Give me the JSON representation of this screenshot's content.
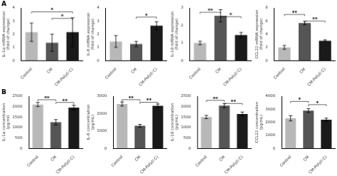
{
  "chart_data": [
    {
      "type": "bar",
      "panel_label": "A",
      "ylabel": "IL-1α mRNA expression\n(fold of change)",
      "categories": [
        "Control",
        "CM",
        "CM-Poly(I:C)"
      ],
      "values": [
        2.15,
        1.35,
        2.15
      ],
      "errors": [
        0.7,
        0.65,
        1.1
      ],
      "colors": [
        "#b8b8b8",
        "#555555",
        "#1a1a1a"
      ],
      "ylim": [
        0,
        4
      ],
      "yticks": [
        0,
        1,
        2,
        3,
        4
      ],
      "grid": false,
      "sig_lines": [
        {
          "x1": "Control",
          "x2": "CM-Poly(I:C)",
          "y": 3.7,
          "label": "*"
        },
        {
          "x1": "CM",
          "x2": "CM-Poly(I:C)",
          "y": 3.2,
          "label": "*"
        }
      ]
    },
    {
      "type": "bar",
      "ylabel": "IL-6 mRNA expression\n(fold of change)",
      "categories": [
        "Control",
        "CM",
        "CM-Poly(I:C)"
      ],
      "values": [
        1.45,
        1.25,
        2.65
      ],
      "errors": [
        0.45,
        0.2,
        0.3
      ],
      "colors": [
        "#b8b8b8",
        "#555555",
        "#1a1a1a"
      ],
      "ylim": [
        0,
        4
      ],
      "yticks": [
        0,
        1,
        2,
        3,
        4
      ],
      "grid": false,
      "sig_lines": [
        {
          "x1": "CM",
          "x2": "CM-Poly(I:C)",
          "y": 3.3,
          "label": "*"
        }
      ]
    },
    {
      "type": "bar",
      "ylabel": "IL-10 mRNA expression\n(fold of change)",
      "categories": [
        "Control",
        "CM",
        "CM-Poly(I:C)"
      ],
      "values": [
        1.0,
        2.55,
        1.45
      ],
      "errors": [
        0.1,
        0.35,
        0.15
      ],
      "colors": [
        "#b8b8b8",
        "#555555",
        "#1a1a1a"
      ],
      "ylim": [
        0,
        3
      ],
      "yticks": [
        0,
        1,
        2,
        3
      ],
      "grid": false,
      "sig_lines": [
        {
          "x1": "Control",
          "x2": "CM",
          "y": 2.75,
          "label": "**"
        },
        {
          "x1": "CM",
          "x2": "CM-Poly(I:C)",
          "y": 2.5,
          "label": "*"
        }
      ]
    },
    {
      "type": "bar",
      "ylabel": "CCL22 mRNA expression\n(fold of change)",
      "categories": [
        "Control",
        "CM",
        "CM-Poly(I:C)"
      ],
      "values": [
        2.0,
        5.7,
        3.0
      ],
      "errors": [
        0.3,
        0.25,
        0.15
      ],
      "colors": [
        "#b8b8b8",
        "#555555",
        "#1a1a1a"
      ],
      "ylim": [
        0,
        8
      ],
      "yticks": [
        0,
        2,
        4,
        6,
        8
      ],
      "grid": false,
      "sig_lines": [
        {
          "x1": "Control",
          "x2": "CM",
          "y": 7.0,
          "label": "**"
        },
        {
          "x1": "CM",
          "x2": "CM-Poly(I:C)",
          "y": 6.0,
          "label": "**"
        }
      ]
    },
    {
      "type": "bar",
      "panel_label": "B",
      "ylabel": "IL-1α concentration\n(pg/ml)",
      "categories": [
        "Control",
        "CM",
        "CM-Poly(I:C)"
      ],
      "values": [
        2100,
        1250,
        1950
      ],
      "errors": [
        100,
        130,
        120
      ],
      "colors": [
        "#b8b8b8",
        "#555555",
        "#1a1a1a"
      ],
      "ylim": [
        0,
        2500
      ],
      "yticks": [
        0,
        500,
        1000,
        1500,
        2000,
        2500
      ],
      "grid": false,
      "sig_lines": [
        {
          "x1": "Control",
          "x2": "CM",
          "y": 2330,
          "label": "**"
        },
        {
          "x1": "CM",
          "x2": "CM-Poly(I:C)",
          "y": 2200,
          "label": "**"
        }
      ]
    },
    {
      "type": "bar",
      "ylabel": "IL-6 concentration\n(pg/mL)",
      "categories": [
        "Control",
        "CM",
        "CM-Poly(I:C)"
      ],
      "values": [
        2550,
        1300,
        2450
      ],
      "errors": [
        120,
        80,
        100
      ],
      "colors": [
        "#b8b8b8",
        "#555555",
        "#1a1a1a"
      ],
      "ylim": [
        0,
        3000
      ],
      "yticks": [
        0,
        1000,
        2000,
        3000
      ],
      "grid": false,
      "sig_lines": [
        {
          "x1": "Control",
          "x2": "CM",
          "y": 2800,
          "label": "**"
        },
        {
          "x1": "CM",
          "x2": "CM-Poly(I:C)",
          "y": 2650,
          "label": "**"
        }
      ]
    },
    {
      "type": "bar",
      "ylabel": "IL-10 concentration\n(pg/mL)",
      "categories": [
        "Control",
        "CM",
        "CM-Poly(I:C)"
      ],
      "values": [
        1500,
        2050,
        1650
      ],
      "errors": [
        80,
        100,
        90
      ],
      "colors": [
        "#b8b8b8",
        "#555555",
        "#1a1a1a"
      ],
      "ylim": [
        0,
        2500
      ],
      "yticks": [
        0,
        500,
        1000,
        1500,
        2000,
        2500
      ],
      "grid": false,
      "sig_lines": [
        {
          "x1": "Control",
          "x2": "CM",
          "y": 2300,
          "label": "**"
        },
        {
          "x1": "CM",
          "x2": "CM-Poly(I:C)",
          "y": 2150,
          "label": "**"
        }
      ]
    },
    {
      "type": "bar",
      "ylabel": "CCL22 concentration\n(pg/mL)",
      "categories": [
        "Control",
        "CM",
        "CM-Poly(I:C)"
      ],
      "values": [
        2300,
        2900,
        2200
      ],
      "errors": [
        200,
        150,
        120
      ],
      "colors": [
        "#b8b8b8",
        "#555555",
        "#1a1a1a"
      ],
      "ylim": [
        0,
        4000
      ],
      "yticks": [
        0,
        1000,
        2000,
        3000,
        4000
      ],
      "grid": false,
      "sig_lines": [
        {
          "x1": "Control",
          "x2": "CM",
          "y": 3600,
          "label": "*"
        },
        {
          "x1": "CM",
          "x2": "CM-Poly(I:C)",
          "y": 3350,
          "label": "*"
        }
      ]
    }
  ]
}
